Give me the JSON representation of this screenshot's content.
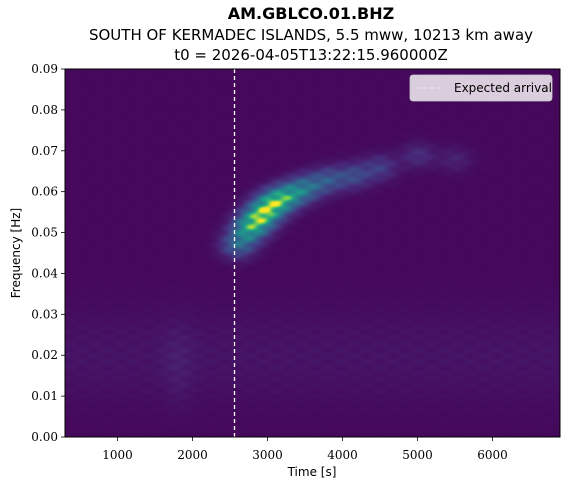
{
  "chart_data": {
    "type": "heatmap",
    "title": "AM.GBLCO.01.BHZ",
    "subtitle": "SOUTH OF KERMADEC ISLANDS, 5.5 mww, 10213 km away",
    "subtitle2": "t0 = 2026-04-05T13:22:15.960000Z",
    "xlabel": "Time [s]",
    "ylabel": "Frequency [Hz]",
    "xlim": [
      300,
      6900
    ],
    "ylim": [
      0.0,
      0.09
    ],
    "xticks": [
      1000,
      2000,
      3000,
      4000,
      5000,
      6000
    ],
    "yticks": [
      0.0,
      0.01,
      0.02,
      0.03,
      0.04,
      0.05,
      0.06,
      0.07,
      0.08,
      0.09
    ],
    "xtick_labels": [
      "1000",
      "2000",
      "3000",
      "4000",
      "5000",
      "6000"
    ],
    "ytick_labels": [
      "0.00",
      "0.01",
      "0.02",
      "0.03",
      "0.04",
      "0.05",
      "0.06",
      "0.07",
      "0.08",
      "0.09"
    ],
    "colormap": "viridis",
    "expected_arrival_s": 2560,
    "legend": {
      "label": "Expected arrival",
      "placement": "top-right"
    },
    "energy_ridge": [
      {
        "t": 2600,
        "f": 0.047,
        "amp": 0.55
      },
      {
        "t": 2750,
        "f": 0.051,
        "amp": 0.85
      },
      {
        "t": 2900,
        "f": 0.054,
        "amp": 1.0
      },
      {
        "t": 3050,
        "f": 0.057,
        "amp": 0.95
      },
      {
        "t": 3250,
        "f": 0.059,
        "amp": 0.8
      },
      {
        "t": 3500,
        "f": 0.061,
        "amp": 0.6
      },
      {
        "t": 3800,
        "f": 0.063,
        "amp": 0.45
      },
      {
        "t": 4150,
        "f": 0.064,
        "amp": 0.38
      },
      {
        "t": 4500,
        "f": 0.066,
        "amp": 0.3
      },
      {
        "t": 5000,
        "f": 0.069,
        "amp": 0.22
      },
      {
        "t": 5500,
        "f": 0.068,
        "amp": 0.15
      }
    ]
  }
}
